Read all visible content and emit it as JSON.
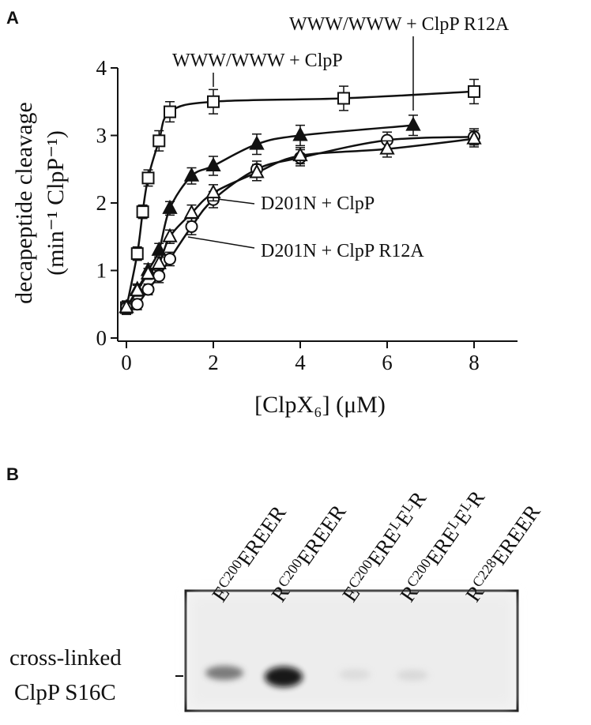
{
  "chart_data": {
    "type": "scatter",
    "panel_label": "A",
    "xlabel": "[ClpX₆] (μM)",
    "ylabel": [
      "decapeptide cleavage",
      "(min⁻¹ ClpP⁻¹)"
    ],
    "xlim": [
      -0.2,
      9
    ],
    "ylim": [
      0,
      4
    ],
    "xticks": [
      0,
      2,
      4,
      6,
      8
    ],
    "yticks": [
      0,
      1,
      2,
      3,
      4
    ],
    "series": [
      {
        "name": "WWW/WWW + ClpP",
        "marker": "square",
        "filled": false,
        "color": "#111111",
        "x": [
          0,
          0.25,
          0.375,
          0.5,
          0.75,
          1,
          2,
          5,
          8
        ],
        "values": [
          0.45,
          1.25,
          1.87,
          2.37,
          2.92,
          3.35,
          3.5,
          3.55,
          3.65
        ],
        "errors": [
          0.1,
          0.1,
          0.1,
          0.12,
          0.15,
          0.15,
          0.18,
          0.18,
          0.18
        ]
      },
      {
        "name": "WWW/WWW + ClpP R12A",
        "marker": "triangle",
        "filled": true,
        "color": "#111111",
        "x": [
          0,
          0.25,
          0.5,
          0.75,
          1,
          1.5,
          2,
          3,
          4,
          6.6
        ],
        "values": [
          0.45,
          0.72,
          1.0,
          1.3,
          1.92,
          2.4,
          2.55,
          2.87,
          3.0,
          3.15
        ],
        "errors": [
          0.08,
          0.08,
          0.1,
          0.1,
          0.1,
          0.12,
          0.14,
          0.15,
          0.15,
          0.15
        ]
      },
      {
        "name": "D201N + ClpP",
        "marker": "circle",
        "filled": false,
        "color": "#111111",
        "x": [
          0,
          0.25,
          0.5,
          0.75,
          1,
          1.5,
          2,
          3,
          4,
          6,
          8
        ],
        "values": [
          0.45,
          0.5,
          0.72,
          0.92,
          1.17,
          1.65,
          2.05,
          2.5,
          2.67,
          2.93,
          2.98
        ],
        "errors": [
          0.08,
          0.08,
          0.08,
          0.1,
          0.1,
          0.12,
          0.12,
          0.12,
          0.12,
          0.12,
          0.12
        ]
      },
      {
        "name": "D201N + ClpP R12A",
        "marker": "triangle",
        "filled": false,
        "color": "#111111",
        "x": [
          0,
          0.25,
          0.5,
          0.75,
          1,
          1.5,
          2,
          3,
          4,
          6,
          8
        ],
        "values": [
          0.45,
          0.7,
          0.95,
          1.1,
          1.5,
          1.85,
          2.15,
          2.45,
          2.7,
          2.8,
          2.95
        ],
        "errors": [
          0.08,
          0.08,
          0.08,
          0.1,
          0.1,
          0.12,
          0.12,
          0.12,
          0.12,
          0.12,
          0.12
        ]
      }
    ]
  },
  "gel": {
    "panel_label": "B",
    "lanes": [
      [
        "E",
        "C200",
        "EREER"
      ],
      [
        "R",
        "C200",
        "EREER"
      ],
      [
        "E",
        "C200",
        "ERE",
        "L",
        "E",
        "L",
        "R"
      ],
      [
        "R",
        "C200",
        "ERE",
        "L",
        "E",
        "L",
        "R"
      ],
      [
        "R",
        "C228",
        "EREER"
      ]
    ],
    "band_label": [
      "cross-linked",
      "ClpP S16C"
    ]
  }
}
